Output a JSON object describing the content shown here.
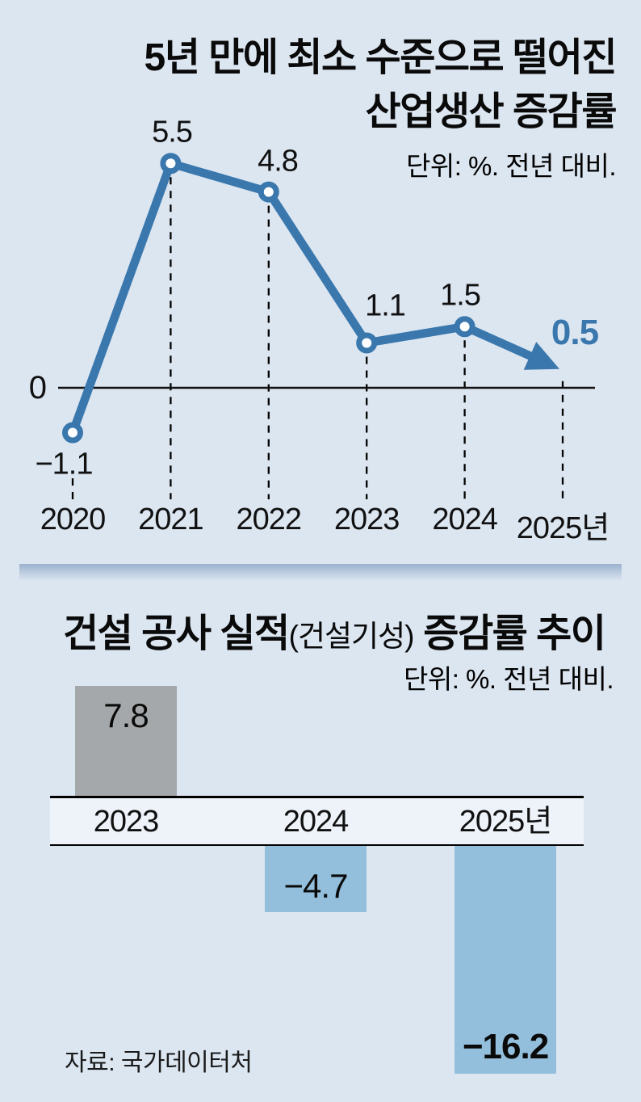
{
  "source": "자료: 국가데이터처",
  "colors": {
    "background": "#dce6f1",
    "line_blue": "#3a77ad",
    "bar_blue": "#93bfdc",
    "bar_gray": "#a5a8ab",
    "band_background": "#edf3f9",
    "guide_black": "#000000"
  },
  "chart_data": [
    {
      "type": "line",
      "title_lines": [
        "5년 만에 최소 수준으로 떨어진",
        "산업생산 증감률"
      ],
      "subtitle": "단위: %. 전년 대비.",
      "x": [
        "2020",
        "2021",
        "2022",
        "2023",
        "2024",
        "2025년"
      ],
      "values": [
        -1.1,
        5.5,
        4.8,
        1.1,
        1.5,
        0.5
      ],
      "value_labels": [
        "−1.1",
        "5.5",
        "4.8",
        "1.1",
        "1.5",
        "0.5"
      ],
      "zero_label": "0",
      "emphasis_index": 5,
      "ylim": [
        -2.5,
        6.5
      ],
      "grid": "dashed-vertical-guides",
      "legend": "none",
      "last_point_style": "arrow"
    },
    {
      "type": "bar",
      "title_segments": {
        "main1": "건설 공사 실적",
        "paren": "(건설기성)",
        "main2": " 증감률 추이"
      },
      "subtitle": "단위: %. 전년 대비.",
      "categories": [
        "2023",
        "2024",
        "2025년"
      ],
      "values": [
        7.8,
        -4.7,
        -16.2
      ],
      "value_labels": [
        "7.8",
        "−4.7",
        "−16.2"
      ],
      "emphasis_index": 2,
      "ylim": [
        -17,
        9
      ],
      "legend": "none"
    }
  ]
}
